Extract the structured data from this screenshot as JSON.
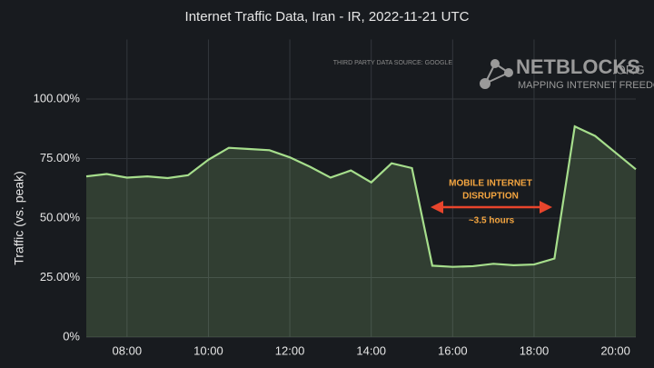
{
  "chart_data": {
    "type": "area",
    "title": "Internet Traffic Data, Iran - IR, 2022-11-21 UTC",
    "y_label": "Traffic (vs. peak)",
    "x": [
      7,
      7.5,
      8,
      8.5,
      9,
      9.5,
      10,
      10.5,
      11,
      11.5,
      12,
      12.5,
      13,
      13.5,
      14,
      14.5,
      15,
      15.5,
      16,
      16.5,
      17,
      17.5,
      18,
      18.5,
      19,
      19.5,
      20,
      20.5
    ],
    "values": [
      67.5,
      68.5,
      67,
      67.5,
      66.8,
      68,
      74.5,
      79.5,
      79,
      78.5,
      75.5,
      71.5,
      67,
      70,
      65,
      73,
      71,
      30,
      29.5,
      29.8,
      30.8,
      30.2,
      30.5,
      33,
      88.5,
      84.5,
      77.5,
      70.5
    ],
    "color": "#a6de8c",
    "xlim": [
      7,
      20.5
    ],
    "xticks": [
      {
        "value": 8,
        "label": "08:00"
      },
      {
        "value": 10,
        "label": "10:00"
      },
      {
        "value": 12,
        "label": "12:00"
      },
      {
        "value": 14,
        "label": "14:00"
      },
      {
        "value": 16,
        "label": "16:00"
      },
      {
        "value": 18,
        "label": "18:00"
      },
      {
        "value": 20,
        "label": "20:00"
      }
    ],
    "ylim": [
      0,
      125
    ],
    "yticks": [
      {
        "value": 0,
        "label": "0%"
      },
      {
        "value": 25,
        "label": "25.00%"
      },
      {
        "value": 50,
        "label": "50.00%"
      },
      {
        "value": 75,
        "label": "75.00%"
      },
      {
        "value": 100,
        "label": "100.00%"
      }
    ],
    "grid": true,
    "annotation": {
      "lines": [
        "MOBILE INTERNET",
        "DISRUPTION"
      ],
      "duration": "~3.5 hours",
      "color": "#f5a640"
    },
    "source_note": "THIRD PARTY DATA SOURCE: GOOGLE",
    "logo": {
      "name": "NETBLOCKS",
      "suffix": ".ORG",
      "tagline": "MAPPING INTERNET FREEDOM"
    }
  }
}
